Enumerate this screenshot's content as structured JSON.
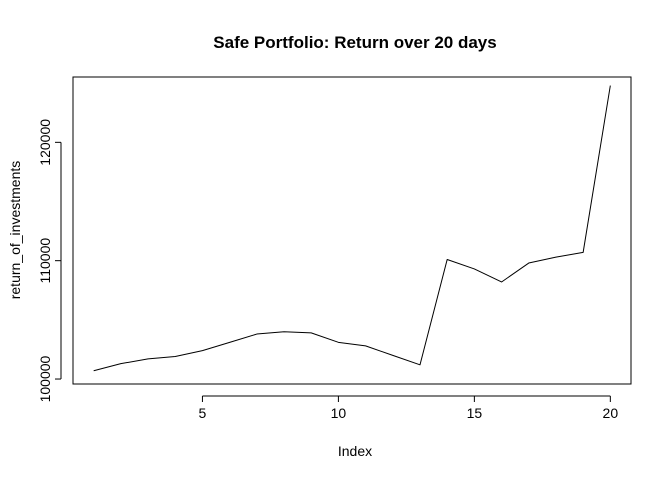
{
  "chart_data": {
    "type": "line",
    "title": "Safe Portfolio: Return over 20 days",
    "xlabel": "Index",
    "ylabel": "return_of_investments",
    "x": [
      1,
      2,
      3,
      4,
      5,
      6,
      7,
      8,
      9,
      10,
      11,
      12,
      13,
      14,
      15,
      16,
      17,
      18,
      19,
      20
    ],
    "series": [
      {
        "values": [
          100700,
          101300,
          101700,
          101900,
          102400,
          103100,
          103800,
          104000,
          103900,
          103100,
          102800,
          102000,
          101200,
          110100,
          109300,
          108200,
          109800,
          110300,
          110700,
          124800
        ]
      }
    ],
    "xlim": [
      0.24,
      20.76
    ],
    "ylim": [
      99580,
      125520
    ],
    "xticks": [
      "5",
      "10",
      "15",
      "20"
    ],
    "yticks": [
      "100000",
      "110000",
      "120000"
    ],
    "grid": false,
    "line_color": "#000000"
  }
}
